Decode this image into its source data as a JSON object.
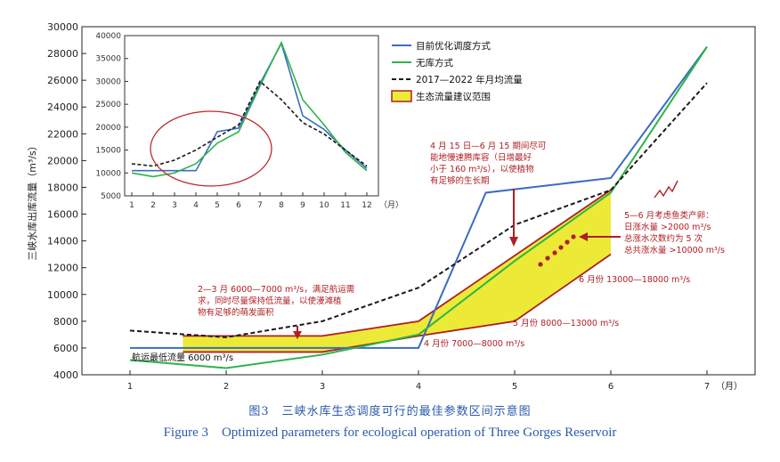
{
  "caption": {
    "cn": "图3　三峡水库生态调度可行的最佳参数区间示意图",
    "en": "Figure 3　Optimized parameters for ecological operation of Three Gorges Reservoir"
  },
  "chart_data": [
    {
      "type": "line",
      "ylabel": "三峡水库出库流量（m³/s）",
      "xlabel": "",
      "x_unit": "（月）",
      "x": [
        1,
        2,
        3,
        4,
        5,
        6,
        7
      ],
      "x_tick_labels": [
        "1",
        "2",
        "3",
        "4",
        "5",
        "6",
        "7"
      ],
      "ylim": [
        4000,
        30000
      ],
      "yticks": [
        4000,
        6000,
        8000,
        10000,
        12000,
        14000,
        16000,
        18000,
        20000,
        22000,
        24000,
        26000,
        28000,
        30000
      ],
      "series": [
        {
          "name": "目前优化调度方式",
          "color": "#3b6cc2",
          "style": "solid",
          "points": [
            [
              1,
              6000
            ],
            [
              4,
              6000
            ],
            [
              4.7,
              17600
            ],
            [
              6,
              18700
            ],
            [
              7,
              28500
            ]
          ]
        },
        {
          "name": "无库方式",
          "color": "#2db34a",
          "style": "solid",
          "points": [
            [
              1,
              5100
            ],
            [
              2,
              4500
            ],
            [
              3,
              5500
            ],
            [
              4,
              7000
            ],
            [
              5,
              12500
            ],
            [
              6,
              17600
            ],
            [
              7,
              28500
            ]
          ]
        },
        {
          "name": "2017—2022 年月均流量",
          "color": "#1a1a1a",
          "style": "dashed",
          "points": [
            [
              1,
              7300
            ],
            [
              2,
              6800
            ],
            [
              3,
              8000
            ],
            [
              4,
              10500
            ],
            [
              5,
              15200
            ],
            [
              6,
              17800
            ],
            [
              7,
              25800
            ]
          ]
        }
      ],
      "band": {
        "name": "生态流量建议范围",
        "fill": "#ecea37",
        "edge": "#b01e23",
        "upper": [
          [
            1.55,
            6900
          ],
          [
            3,
            6900
          ],
          [
            4,
            8000
          ],
          [
            6,
            17800
          ]
        ],
        "lower": [
          [
            1.55,
            5700
          ],
          [
            3,
            5700
          ],
          [
            4,
            6900
          ],
          [
            5,
            8000
          ],
          [
            6,
            13000
          ]
        ]
      },
      "annotations": {
        "min_flow": "航运最低流量 6000 m³/s",
        "feb_mar": [
          "2—3 月 6000—7000 m³/s，满足航运需",
          "求，同时尽量保持低流量，以使漫滩植",
          "物有足够的萌发面积"
        ],
        "apr_jun": [
          "4 月 15 日—6 月 15 期间尽可",
          "能地慢速腾库容（日增最好",
          "小于 160 m³/s），以使植物",
          "有足够的生长期"
        ],
        "may_jun": [
          "5—6 月考虑鱼类产卵：",
          "日涨水量 >2000 m³/s",
          "总涨水次数约为 5 次",
          "总共涨水量 >10000 m³/s"
        ],
        "apr_range": "4 月份 7000—8000 m³/s",
        "may_range": "5 月份 8000—13000 m³/s",
        "jun_range": "6 月份 13000—18000 m³/s"
      },
      "colors": {
        "annotation": "#b01e23",
        "axis": "#222222"
      }
    },
    {
      "type": "line",
      "title": "",
      "x": [
        1,
        2,
        3,
        4,
        5,
        6,
        7,
        8,
        9,
        10,
        11,
        12
      ],
      "x_tick_labels": [
        "1",
        "2",
        "3",
        "4",
        "5",
        "6",
        "7",
        "8",
        "9",
        "10",
        "11",
        "12"
      ],
      "x_unit": "（月）",
      "ylim": [
        5000,
        40000
      ],
      "yticks": [
        5000,
        10000,
        15000,
        20000,
        25000,
        30000,
        35000,
        40000
      ],
      "series": [
        {
          "name": "目前优化调度方式",
          "color": "#3b6cc2",
          "style": "solid",
          "values": [
            10500,
            10500,
            10500,
            10500,
            19000,
            19800,
            29500,
            38300,
            22500,
            19500,
            15000,
            11000
          ]
        },
        {
          "name": "无库方式",
          "color": "#2db34a",
          "style": "solid",
          "values": [
            10000,
            9200,
            10000,
            12000,
            16500,
            19000,
            29000,
            38500,
            26000,
            20500,
            14500,
            10500
          ]
        },
        {
          "name": "2017—2022 年月均流量",
          "color": "#1a1a1a",
          "style": "dashed",
          "values": [
            12000,
            11500,
            12800,
            15000,
            17800,
            20500,
            30000,
            26000,
            21000,
            18500,
            15000,
            11500
          ]
        }
      ],
      "highlight": {
        "shape": "ellipse",
        "color": "#c0282d",
        "months": [
          3,
          6
        ]
      }
    }
  ]
}
